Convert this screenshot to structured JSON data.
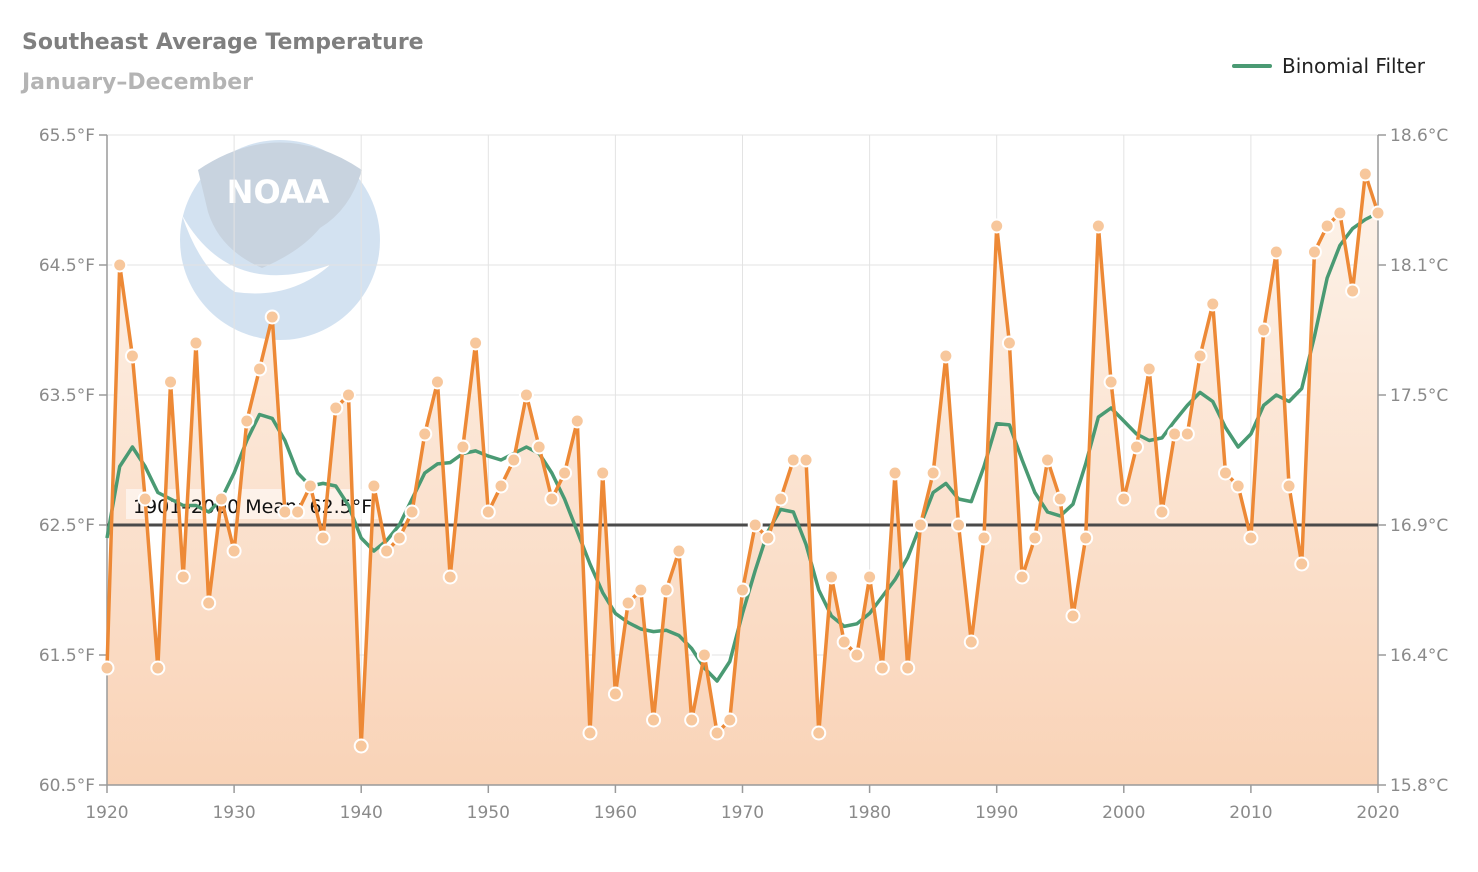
{
  "chart_data": {
    "type": "line",
    "title": "Southeast Average Temperature",
    "subtitle": "January–December",
    "logo_text": "NOAA",
    "x_range": [
      1920,
      2020
    ],
    "x_ticks": [
      1920,
      1930,
      1940,
      1950,
      1960,
      1970,
      1980,
      1990,
      2000,
      2010,
      2020
    ],
    "x_tick_labels": [
      "1920",
      "1930",
      "1940",
      "1950",
      "1960",
      "1970",
      "1980",
      "1990",
      "2000",
      "2010",
      "2020"
    ],
    "y_range_f": [
      60.5,
      65.5
    ],
    "y_ticks_left": [
      60.5,
      61.5,
      62.5,
      63.5,
      64.5,
      65.5
    ],
    "y_tick_labels_left": [
      "60.5°F",
      "61.5°F",
      "62.5°F",
      "63.5°F",
      "64.5°F",
      "65.5°F"
    ],
    "y_ticks_right_f": [
      60.5,
      61.5,
      62.5,
      63.5,
      64.5,
      65.5
    ],
    "y_tick_labels_right": [
      "15.8°C",
      "16.4°C",
      "16.9°C",
      "17.5°C",
      "18.1°C",
      "18.6°C"
    ],
    "grid": true,
    "legend_placement": "top-right",
    "mean": {
      "value": 62.5,
      "label": "1901–2000 Mean: 62.5°F"
    },
    "colors": {
      "series": "#ed8936",
      "filter": "#4a9a73",
      "mean": "#4a4a4a",
      "fill_top": "#fdf3ea",
      "fill_bottom": "#f9d3b7"
    },
    "years": [
      1920,
      1921,
      1922,
      1923,
      1924,
      1925,
      1926,
      1927,
      1928,
      1929,
      1930,
      1931,
      1932,
      1933,
      1934,
      1935,
      1936,
      1937,
      1938,
      1939,
      1940,
      1941,
      1942,
      1943,
      1944,
      1945,
      1946,
      1947,
      1948,
      1949,
      1950,
      1951,
      1952,
      1953,
      1954,
      1955,
      1956,
      1957,
      1958,
      1959,
      1960,
      1961,
      1962,
      1963,
      1964,
      1965,
      1966,
      1967,
      1968,
      1969,
      1970,
      1971,
      1972,
      1973,
      1974,
      1975,
      1976,
      1977,
      1978,
      1979,
      1980,
      1981,
      1982,
      1983,
      1984,
      1985,
      1986,
      1987,
      1988,
      1989,
      1990,
      1991,
      1992,
      1993,
      1994,
      1995,
      1996,
      1997,
      1998,
      1999,
      2000,
      2001,
      2002,
      2003,
      2004,
      2005,
      2006,
      2007,
      2008,
      2009,
      2010,
      2011,
      2012,
      2013,
      2014,
      2015,
      2016,
      2017,
      2018,
      2019,
      2020
    ],
    "series": [
      {
        "key": "annual",
        "values": [
          61.4,
          64.5,
          63.8,
          62.7,
          61.4,
          63.6,
          62.1,
          63.9,
          61.9,
          62.7,
          62.3,
          63.3,
          63.7,
          64.1,
          62.6,
          62.6,
          62.8,
          62.4,
          63.4,
          63.5,
          60.8,
          62.8,
          62.3,
          62.4,
          62.6,
          63.2,
          63.6,
          62.1,
          63.1,
          63.9,
          62.6,
          62.8,
          63.0,
          63.5,
          63.1,
          62.7,
          62.9,
          63.3,
          60.9,
          62.9,
          61.2,
          61.9,
          62.0,
          61.0,
          62.0,
          62.3,
          61.0,
          61.5,
          60.9,
          61.0,
          62.0,
          62.5,
          62.4,
          62.7,
          63.0,
          63.0,
          60.9,
          62.1,
          61.6,
          61.5,
          62.1,
          61.4,
          62.9,
          61.4,
          62.5,
          62.9,
          63.8,
          62.5,
          61.6,
          62.4,
          64.8,
          63.9,
          62.1,
          62.4,
          63.0,
          62.7,
          61.8,
          62.4,
          64.8,
          63.6,
          62.7,
          63.1,
          63.7,
          62.6,
          63.2,
          63.2,
          63.8,
          64.2,
          62.9,
          62.8,
          62.4,
          64.0,
          64.6,
          62.8,
          62.2,
          64.6,
          64.8,
          64.9,
          64.3,
          65.2,
          64.9
        ]
      },
      {
        "key": "filter",
        "name": "Binomial Filter",
        "values": [
          62.4,
          62.95,
          63.1,
          62.95,
          62.75,
          62.7,
          62.65,
          62.65,
          62.6,
          62.7,
          62.9,
          63.15,
          63.35,
          63.32,
          63.15,
          62.9,
          62.8,
          62.82,
          62.8,
          62.65,
          62.4,
          62.3,
          62.38,
          62.5,
          62.7,
          62.9,
          62.97,
          62.98,
          63.05,
          63.07,
          63.03,
          63.0,
          63.05,
          63.1,
          63.05,
          62.9,
          62.7,
          62.45,
          62.2,
          61.98,
          61.82,
          61.75,
          61.7,
          61.68,
          61.69,
          61.65,
          61.55,
          61.4,
          61.3,
          61.45,
          61.82,
          62.15,
          62.45,
          62.62,
          62.6,
          62.35,
          62.0,
          61.8,
          61.72,
          61.74,
          61.82,
          61.95,
          62.08,
          62.25,
          62.5,
          62.75,
          62.82,
          62.7,
          62.68,
          62.95,
          63.28,
          63.27,
          63.0,
          62.75,
          62.6,
          62.57,
          62.66,
          62.97,
          63.33,
          63.4,
          63.3,
          63.2,
          63.15,
          63.17,
          63.3,
          63.42,
          63.52,
          63.45,
          63.25,
          63.1,
          63.2,
          63.42,
          63.5,
          63.45,
          63.55,
          63.95,
          64.4,
          64.65,
          64.78,
          64.85,
          64.9
        ]
      }
    ]
  },
  "legend": {
    "label": "Binomial Filter"
  }
}
